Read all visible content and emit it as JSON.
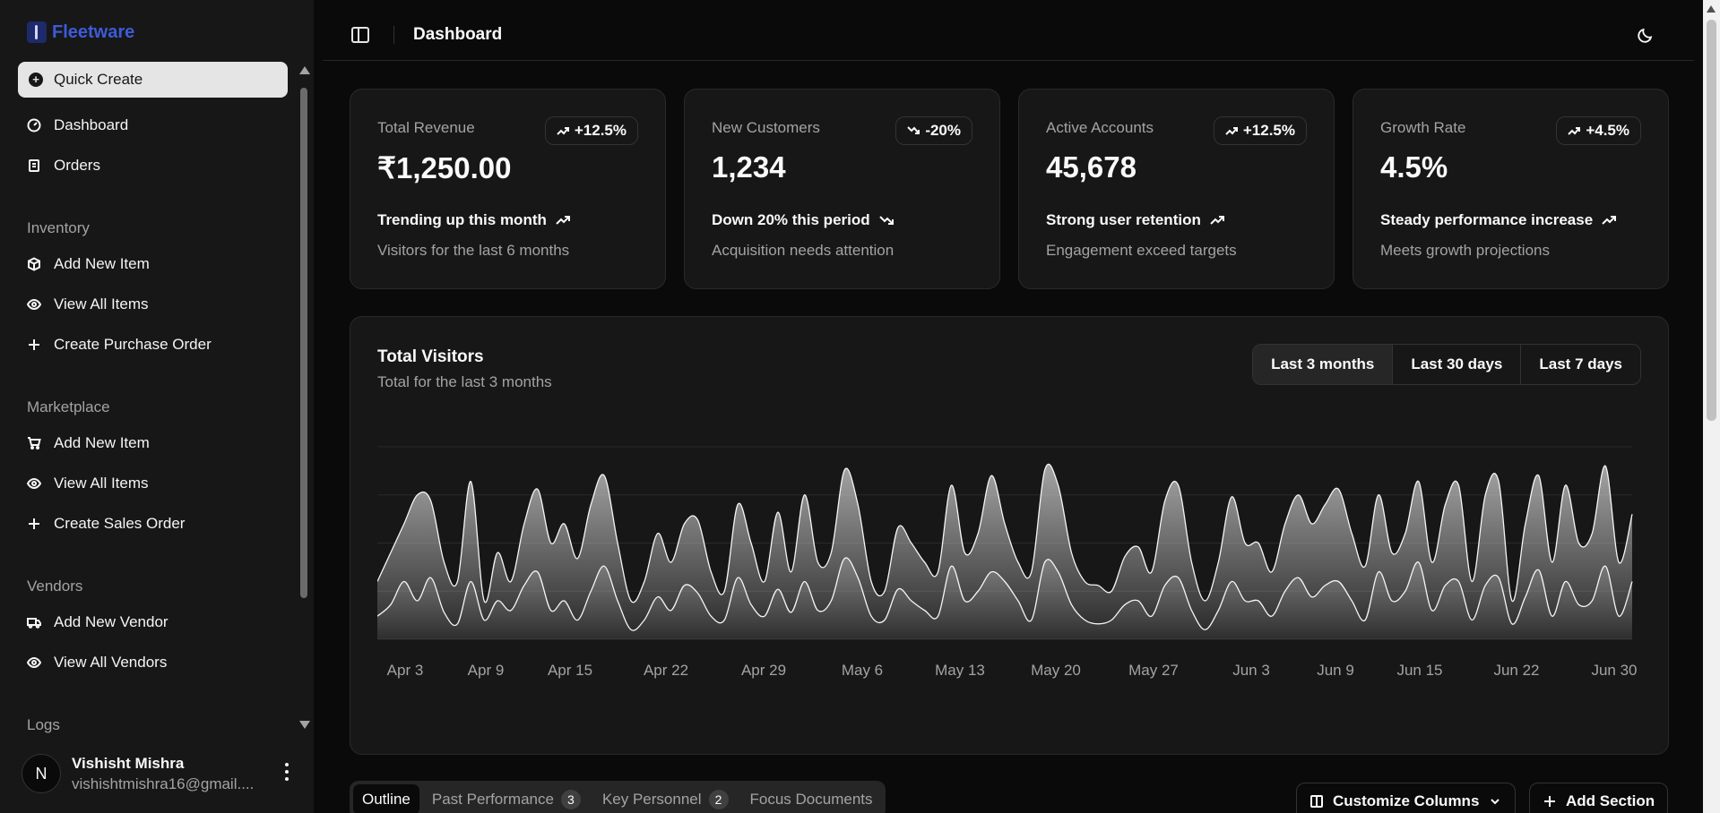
{
  "brand": {
    "name": "Fleetware"
  },
  "sidebar": {
    "quick_create": "Quick Create",
    "main_items": [
      {
        "label": "Dashboard",
        "icon": "gauge-icon"
      },
      {
        "label": "Orders",
        "icon": "clipboard-icon"
      }
    ],
    "groups": [
      {
        "label": "Inventory",
        "items": [
          {
            "label": "Add New Item",
            "icon": "package-icon"
          },
          {
            "label": "View All Items",
            "icon": "eye-icon"
          },
          {
            "label": "Create Purchase Order",
            "icon": "plus-icon"
          }
        ]
      },
      {
        "label": "Marketplace",
        "items": [
          {
            "label": "Add New Item",
            "icon": "cart-icon"
          },
          {
            "label": "View All Items",
            "icon": "eye-icon"
          },
          {
            "label": "Create Sales Order",
            "icon": "plus-icon"
          }
        ]
      },
      {
        "label": "Vendors",
        "items": [
          {
            "label": "Add New Vendor",
            "icon": "truck-icon"
          },
          {
            "label": "View All Vendors",
            "icon": "eye-icon"
          }
        ]
      },
      {
        "label": "Logs",
        "items": []
      }
    ]
  },
  "user": {
    "initial": "N",
    "name": "Vishisht Mishra",
    "email": "vishishtmishra16@gmail...."
  },
  "header": {
    "title": "Dashboard"
  },
  "cards": [
    {
      "title": "Total Revenue",
      "value": "₹1,250.00",
      "badge": "+12.5%",
      "trend": "up",
      "footer": "Trending up this month",
      "sub": "Visitors for the last 6 months"
    },
    {
      "title": "New Customers",
      "value": "1,234",
      "badge": "-20%",
      "trend": "down",
      "footer": "Down 20% this period",
      "sub": "Acquisition needs attention"
    },
    {
      "title": "Active Accounts",
      "value": "45,678",
      "badge": "+12.5%",
      "trend": "up",
      "footer": "Strong user retention",
      "sub": "Engagement exceed targets"
    },
    {
      "title": "Growth Rate",
      "value": "4.5%",
      "badge": "+4.5%",
      "trend": "up",
      "footer": "Steady performance increase",
      "sub": "Meets growth projections"
    }
  ],
  "visitors": {
    "title": "Total Visitors",
    "subtitle": "Total for the last 3 months",
    "ranges": [
      "Last 3 months",
      "Last 30 days",
      "Last 7 days"
    ],
    "selected_range": "Last 3 months"
  },
  "tabs": [
    {
      "label": "Outline",
      "count": null
    },
    {
      "label": "Past Performance",
      "count": "3"
    },
    {
      "label": "Key Personnel",
      "count": "2"
    },
    {
      "label": "Focus Documents",
      "count": null
    }
  ],
  "actions": {
    "customize": "Customize Columns",
    "add_section": "Add Section"
  },
  "chart_data": {
    "type": "area",
    "x_ticks": [
      "Apr 3",
      "Apr 9",
      "Apr 15",
      "Apr 22",
      "Apr 29",
      "May 6",
      "May 13",
      "May 20",
      "May 27",
      "Jun 3",
      "Jun 9",
      "Jun 15",
      "Jun 22",
      "Jun 30"
    ],
    "series": [
      {
        "values": [
          0.3,
          0.45,
          0.6,
          0.75,
          0.72,
          0.4,
          0.3,
          0.82,
          0.2,
          0.45,
          0.3,
          0.6,
          0.78,
          0.5,
          0.6,
          0.42,
          0.7,
          0.85,
          0.5,
          0.2,
          0.3,
          0.55,
          0.4,
          0.6,
          0.62,
          0.35,
          0.25,
          0.7,
          0.5,
          0.3,
          0.66,
          0.35,
          0.75,
          0.4,
          0.45,
          0.88,
          0.7,
          0.3,
          0.25,
          0.58,
          0.5,
          0.4,
          0.35,
          0.8,
          0.45,
          0.55,
          0.85,
          0.6,
          0.4,
          0.35,
          0.88,
          0.8,
          0.45,
          0.3,
          0.28,
          0.25,
          0.43,
          0.48,
          0.35,
          0.72,
          0.8,
          0.4,
          0.2,
          0.4,
          0.74,
          0.5,
          0.5,
          0.35,
          0.6,
          0.75,
          0.6,
          0.7,
          0.78,
          0.55,
          0.38,
          0.75,
          0.45,
          0.55,
          0.82,
          0.4,
          0.7,
          0.8,
          0.3,
          0.75,
          0.82,
          0.2,
          0.6,
          0.85,
          0.4,
          0.8,
          0.5,
          0.55,
          0.9,
          0.4,
          0.65
        ]
      },
      {
        "values": [
          0.12,
          0.18,
          0.3,
          0.2,
          0.32,
          0.14,
          0.08,
          0.3,
          0.1,
          0.2,
          0.15,
          0.28,
          0.35,
          0.15,
          0.2,
          0.1,
          0.25,
          0.38,
          0.2,
          0.05,
          0.1,
          0.22,
          0.15,
          0.28,
          0.24,
          0.12,
          0.1,
          0.32,
          0.18,
          0.12,
          0.26,
          0.14,
          0.3,
          0.15,
          0.2,
          0.42,
          0.32,
          0.12,
          0.1,
          0.26,
          0.2,
          0.15,
          0.12,
          0.38,
          0.2,
          0.25,
          0.35,
          0.3,
          0.2,
          0.1,
          0.4,
          0.35,
          0.18,
          0.1,
          0.08,
          0.1,
          0.18,
          0.2,
          0.12,
          0.28,
          0.32,
          0.15,
          0.05,
          0.15,
          0.3,
          0.2,
          0.2,
          0.12,
          0.25,
          0.32,
          0.22,
          0.28,
          0.3,
          0.2,
          0.1,
          0.35,
          0.2,
          0.25,
          0.4,
          0.15,
          0.28,
          0.3,
          0.1,
          0.28,
          0.32,
          0.08,
          0.22,
          0.36,
          0.12,
          0.3,
          0.18,
          0.2,
          0.38,
          0.12,
          0.3
        ]
      }
    ],
    "grid": true,
    "legend": "none"
  }
}
